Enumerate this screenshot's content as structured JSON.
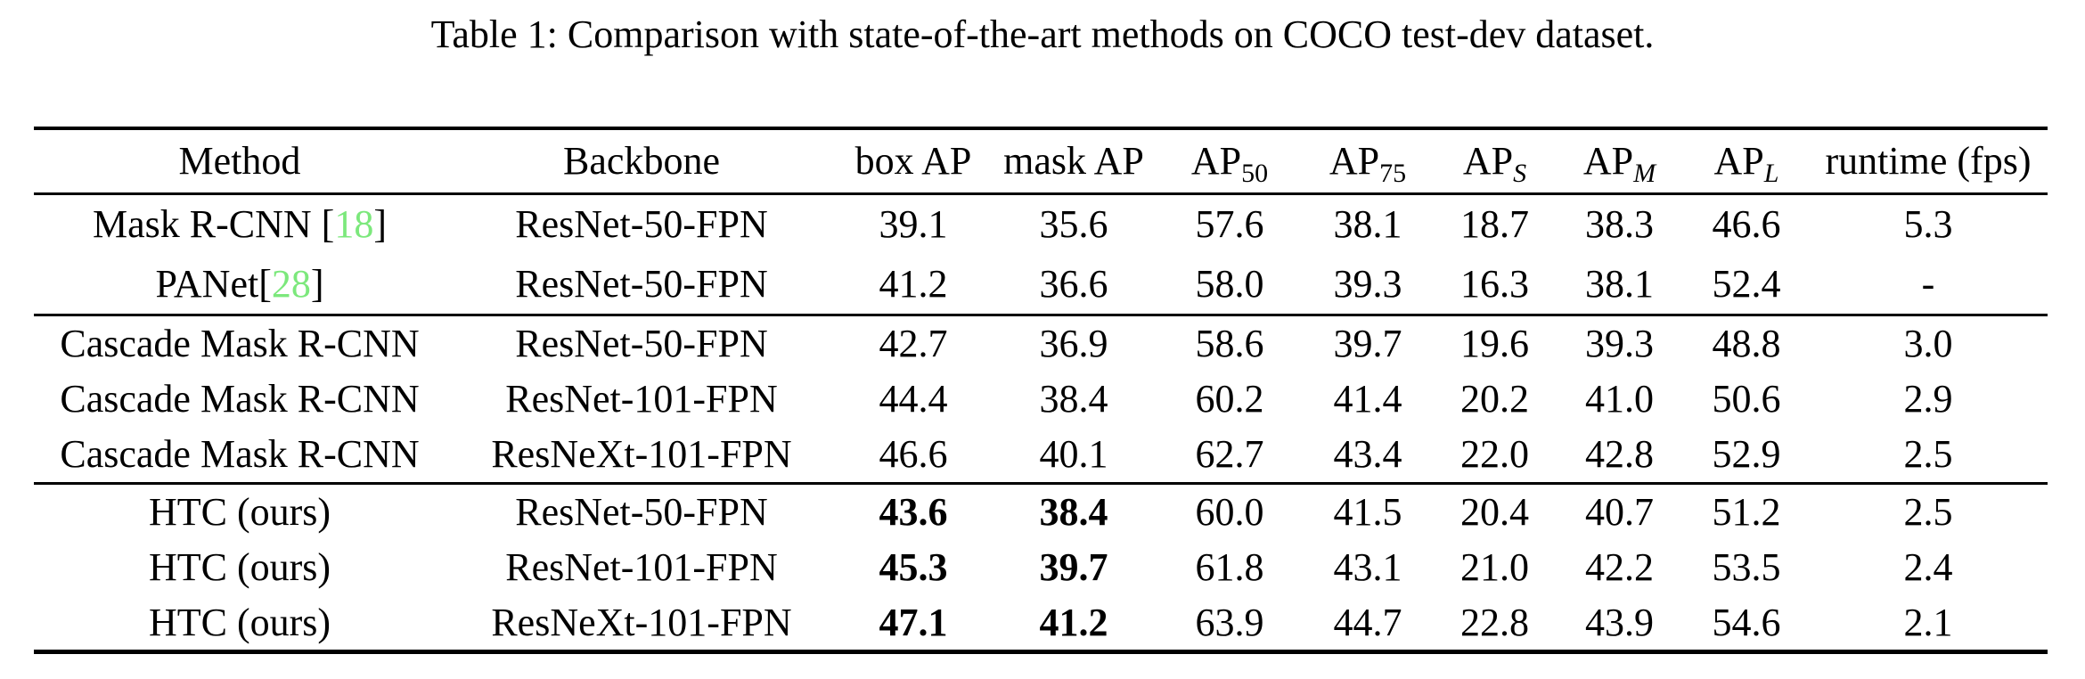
{
  "caption": "Table 1: Comparison with state-of-the-art methods on COCO test-dev dataset.",
  "colors": {
    "citation_green": "#7ce87c",
    "text": "#000000",
    "background": "#ffffff"
  },
  "table": {
    "columns": [
      {
        "label": "Method"
      },
      {
        "label": "Backbone"
      },
      {
        "label": "box AP"
      },
      {
        "label": "mask AP"
      },
      {
        "label": "AP",
        "sub": "50",
        "sub_italic": false
      },
      {
        "label": "AP",
        "sub": "75",
        "sub_italic": false
      },
      {
        "label": "AP",
        "sub": "S",
        "sub_italic": true
      },
      {
        "label": "AP",
        "sub": "M",
        "sub_italic": true
      },
      {
        "label": "AP",
        "sub": "L",
        "sub_italic": true
      },
      {
        "label": "runtime (fps)"
      }
    ],
    "groups": [
      {
        "rows": [
          {
            "method_pre": "Mask R-CNN [",
            "cite": "18",
            "method_post": "]",
            "backbone": "ResNet-50-FPN",
            "values": [
              "39.1",
              "35.6",
              "57.6",
              "38.1",
              "18.7",
              "38.3",
              "46.6",
              "5.3"
            ],
            "bold_values": []
          },
          {
            "method_pre": "PANet[",
            "cite": "28",
            "method_post": "]",
            "backbone": "ResNet-50-FPN",
            "values": [
              "41.2",
              "36.6",
              "58.0",
              "39.3",
              "16.3",
              "38.1",
              "52.4",
              "-"
            ],
            "bold_values": []
          }
        ]
      },
      {
        "rows": [
          {
            "method_pre": "Cascade Mask R-CNN",
            "backbone": "ResNet-50-FPN",
            "values": [
              "42.7",
              "36.9",
              "58.6",
              "39.7",
              "19.6",
              "39.3",
              "48.8",
              "3.0"
            ],
            "bold_values": []
          },
          {
            "method_pre": "Cascade Mask R-CNN",
            "backbone": "ResNet-101-FPN",
            "values": [
              "44.4",
              "38.4",
              "60.2",
              "41.4",
              "20.2",
              "41.0",
              "50.6",
              "2.9"
            ],
            "bold_values": []
          },
          {
            "method_pre": "Cascade Mask R-CNN",
            "backbone": "ResNeXt-101-FPN",
            "values": [
              "46.6",
              "40.1",
              "62.7",
              "43.4",
              "22.0",
              "42.8",
              "52.9",
              "2.5"
            ],
            "bold_values": []
          }
        ]
      },
      {
        "rows": [
          {
            "method_pre": "HTC (ours)",
            "backbone": "ResNet-50-FPN",
            "values": [
              "43.6",
              "38.4",
              "60.0",
              "41.5",
              "20.4",
              "40.7",
              "51.2",
              "2.5"
            ],
            "bold_values": [
              0,
              1
            ]
          },
          {
            "method_pre": "HTC (ours)",
            "backbone": "ResNet-101-FPN",
            "values": [
              "45.3",
              "39.7",
              "61.8",
              "43.1",
              "21.0",
              "42.2",
              "53.5",
              "2.4"
            ],
            "bold_values": [
              0,
              1
            ]
          },
          {
            "method_pre": "HTC (ours)",
            "backbone": "ResNeXt-101-FPN",
            "values": [
              "47.1",
              "41.2",
              "63.9",
              "44.7",
              "22.8",
              "43.9",
              "54.6",
              "2.1"
            ],
            "bold_values": [
              0,
              1
            ]
          }
        ]
      }
    ]
  }
}
